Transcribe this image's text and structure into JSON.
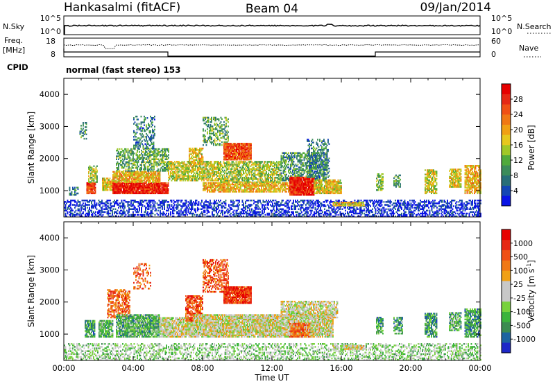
{
  "header": {
    "station": "Hankasalmi (fitACF)",
    "beam": "Beam 04",
    "date": "09/Jan/2014"
  },
  "top_panels": {
    "nsky_label": "N.Sky",
    "nsky_ticks": [
      "10^5",
      "10^0"
    ],
    "nsearch_label": "N.Search",
    "nsearch_ticks": [
      "10^5",
      "10^0"
    ],
    "freq_label_1": "Freq.",
    "freq_label_2": "[MHz]",
    "freq_ticks": [
      "18",
      "8"
    ],
    "nave_label": "Nave",
    "nave_ticks": [
      "60",
      "0"
    ],
    "cpid_label": "CPID",
    "cpid_text": "normal (fast stereo) 153"
  },
  "chart_data": [
    {
      "type": "heatmap",
      "name": "power",
      "xlabel": "Time UT",
      "ylabel": "Slant Range [km]",
      "xlim": [
        0,
        24
      ],
      "ylim": [
        180,
        4500
      ],
      "yticks": [
        1000,
        2000,
        3000,
        4000
      ],
      "ytick_labels": [
        "1000",
        "2000",
        "3000",
        "4000"
      ],
      "colorbar": {
        "label": "Power [dB]",
        "range": [
          0,
          32
        ],
        "ticks": [
          4,
          8,
          12,
          16,
          20,
          24,
          28
        ],
        "tick_labels": [
          "4",
          "8",
          "12",
          "16",
          "20",
          "24",
          "28"
        ],
        "colors": [
          "#0a14e6",
          "#1446b4",
          "#286e78",
          "#3c8c5a",
          "#50aa3c",
          "#a0c828",
          "#e6c81e",
          "#f0a014",
          "#f07814",
          "#f05014",
          "#e62814",
          "#e60000"
        ]
      },
      "regions": [
        {
          "t": [
            0.0,
            24.0
          ],
          "r": [
            180,
            700
          ],
          "level": 0.05,
          "density": 0.45
        },
        {
          "t": [
            0.3,
            0.8
          ],
          "r": [
            850,
            1100
          ],
          "level": 0.25,
          "density": 0.5
        },
        {
          "t": [
            0.9,
            1.3
          ],
          "r": [
            2600,
            3100
          ],
          "level": 0.3,
          "density": 0.3
        },
        {
          "t": [
            1.3,
            1.8
          ],
          "r": [
            900,
            1250
          ],
          "level": 0.85,
          "density": 0.9
        },
        {
          "t": [
            1.4,
            1.9
          ],
          "r": [
            1250,
            1750
          ],
          "level": 0.45,
          "density": 0.6
        },
        {
          "t": [
            2.2,
            2.8
          ],
          "r": [
            1000,
            1400
          ],
          "level": 0.55,
          "density": 0.8
        },
        {
          "t": [
            2.8,
            6.0
          ],
          "r": [
            900,
            1250
          ],
          "level": 0.9,
          "density": 0.95
        },
        {
          "t": [
            2.8,
            5.5
          ],
          "r": [
            1250,
            1600
          ],
          "level": 0.6,
          "density": 0.85
        },
        {
          "t": [
            3.0,
            6.0
          ],
          "r": [
            1600,
            2300
          ],
          "level": 0.35,
          "density": 0.55
        },
        {
          "t": [
            4.0,
            5.2
          ],
          "r": [
            2300,
            3300
          ],
          "level": 0.25,
          "density": 0.35
        },
        {
          "t": [
            6.0,
            9.0
          ],
          "r": [
            1300,
            1900
          ],
          "level": 0.5,
          "density": 0.7
        },
        {
          "t": [
            7.2,
            8.0
          ],
          "r": [
            1800,
            2300
          ],
          "level": 0.55,
          "density": 0.7
        },
        {
          "t": [
            8.0,
            9.5
          ],
          "r": [
            2400,
            3300
          ],
          "level": 0.35,
          "density": 0.45
        },
        {
          "t": [
            8.0,
            13.5
          ],
          "r": [
            950,
            1250
          ],
          "level": 0.6,
          "density": 0.8
        },
        {
          "t": [
            9.2,
            10.8
          ],
          "r": [
            1950,
            2450
          ],
          "level": 0.8,
          "density": 0.9
        },
        {
          "t": [
            9.0,
            12.5
          ],
          "r": [
            1250,
            1900
          ],
          "level": 0.45,
          "density": 0.65
        },
        {
          "t": [
            12.5,
            15.2
          ],
          "r": [
            1300,
            2200
          ],
          "level": 0.3,
          "density": 0.55
        },
        {
          "t": [
            13.0,
            14.4
          ],
          "r": [
            850,
            1400
          ],
          "level": 0.9,
          "density": 0.95
        },
        {
          "t": [
            14.4,
            16.0
          ],
          "r": [
            900,
            1350
          ],
          "level": 0.55,
          "density": 0.85
        },
        {
          "t": [
            14.0,
            15.3
          ],
          "r": [
            1400,
            2600
          ],
          "level": 0.25,
          "density": 0.4
        },
        {
          "t": [
            15.5,
            17.3
          ],
          "r": [
            520,
            650
          ],
          "level": 0.55,
          "density": 0.8
        },
        {
          "t": [
            18.0,
            18.4
          ],
          "r": [
            1000,
            1500
          ],
          "level": 0.4,
          "density": 0.7
        },
        {
          "t": [
            19.0,
            19.4
          ],
          "r": [
            1100,
            1500
          ],
          "level": 0.35,
          "density": 0.6
        },
        {
          "t": [
            20.8,
            21.5
          ],
          "r": [
            900,
            1650
          ],
          "level": 0.5,
          "density": 0.7
        },
        {
          "t": [
            22.2,
            22.9
          ],
          "r": [
            1100,
            1650
          ],
          "level": 0.55,
          "density": 0.75
        },
        {
          "t": [
            23.1,
            24.0
          ],
          "r": [
            900,
            1800
          ],
          "level": 0.6,
          "density": 0.75
        }
      ]
    },
    {
      "type": "heatmap",
      "name": "velocity",
      "xlabel": "Time UT",
      "ylabel": "Slant Range [km]",
      "xlim": [
        0,
        24
      ],
      "ylim": [
        180,
        4500
      ],
      "yticks": [
        1000,
        2000,
        3000,
        4000
      ],
      "ytick_labels": [
        "1000",
        "2000",
        "3000",
        "4000"
      ],
      "xticks": [
        0,
        4,
        8,
        12,
        16,
        20,
        24
      ],
      "xtick_labels": [
        "00:00",
        "04:00",
        "08:00",
        "12:00",
        "16:00",
        "20:00",
        "00:00"
      ],
      "colorbar": {
        "label": "Velocity [m s",
        "label_sup": "-1",
        "label_end": "]",
        "tick_labels": [
          "1000",
          "500",
          "100",
          "25",
          "-25",
          "-100",
          "-500",
          "-1000"
        ],
        "colors": [
          "#1e28c8",
          "#1e64a0",
          "#3c8c50",
          "#3cb43c",
          "#78d23c",
          "#c8c8c8",
          "#c8c8c8",
          "#f0a014",
          "#f07814",
          "#f05014",
          "#e62814",
          "#e60000"
        ]
      },
      "regions": [
        {
          "t": [
            0.0,
            24.0
          ],
          "r": [
            180,
            700
          ],
          "level": 0.4,
          "density": 0.4
        },
        {
          "t": [
            1.2,
            1.8
          ],
          "r": [
            900,
            1400
          ],
          "level": 0.25,
          "density": 0.8
        },
        {
          "t": [
            2.0,
            2.8
          ],
          "r": [
            900,
            1400
          ],
          "level": 0.3,
          "density": 0.85
        },
        {
          "t": [
            2.5,
            3.8
          ],
          "r": [
            1500,
            2400
          ],
          "level": 0.75,
          "density": 0.6
        },
        {
          "t": [
            3.0,
            5.5
          ],
          "r": [
            900,
            1600
          ],
          "level": 0.3,
          "density": 0.9
        },
        {
          "t": [
            4.0,
            5.0
          ],
          "r": [
            2400,
            3200
          ],
          "level": 0.75,
          "density": 0.3
        },
        {
          "t": [
            5.5,
            7.5
          ],
          "r": [
            900,
            1500
          ],
          "level": 0.5,
          "density": 0.85
        },
        {
          "t": [
            7.0,
            8.0
          ],
          "r": [
            1400,
            2200
          ],
          "level": 0.8,
          "density": 0.7
        },
        {
          "t": [
            8.0,
            9.5
          ],
          "r": [
            2300,
            3300
          ],
          "level": 0.8,
          "density": 0.5
        },
        {
          "t": [
            7.5,
            15.5
          ],
          "r": [
            900,
            1600
          ],
          "level": 0.5,
          "density": 0.9
        },
        {
          "t": [
            9.2,
            10.8
          ],
          "r": [
            1950,
            2450
          ],
          "level": 0.85,
          "density": 0.9
        },
        {
          "t": [
            12.5,
            15.8
          ],
          "r": [
            1500,
            2000
          ],
          "level": 0.5,
          "density": 0.7
        },
        {
          "t": [
            13.0,
            14.2
          ],
          "r": [
            900,
            1350
          ],
          "level": 0.7,
          "density": 0.9
        },
        {
          "t": [
            15.5,
            17.3
          ],
          "r": [
            520,
            650
          ],
          "level": 0.5,
          "density": 0.85
        },
        {
          "t": [
            18.0,
            18.4
          ],
          "r": [
            1000,
            1500
          ],
          "level": 0.25,
          "density": 0.7
        },
        {
          "t": [
            19.0,
            19.5
          ],
          "r": [
            1000,
            1500
          ],
          "level": 0.25,
          "density": 0.6
        },
        {
          "t": [
            20.8,
            21.5
          ],
          "r": [
            900,
            1650
          ],
          "level": 0.25,
          "density": 0.7
        },
        {
          "t": [
            22.2,
            22.9
          ],
          "r": [
            1100,
            1650
          ],
          "level": 0.3,
          "density": 0.75
        },
        {
          "t": [
            23.1,
            24.0
          ],
          "r": [
            900,
            1800
          ],
          "level": 0.25,
          "density": 0.75
        }
      ]
    }
  ]
}
